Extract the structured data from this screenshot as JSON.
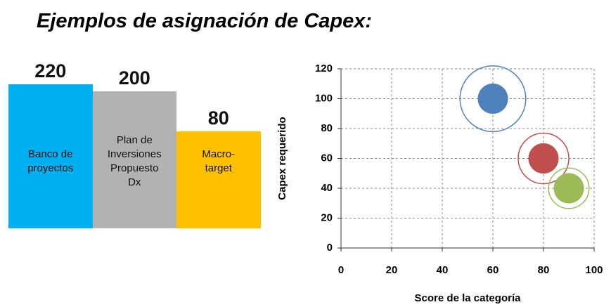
{
  "title": "Ejemplos de asignación de Capex:",
  "chart_data": [
    {
      "type": "bar",
      "categories": [
        "Banco de\nproyectos",
        "Plan de\nInversiones\nPropuesto\nDx",
        "Macro-\ntarget"
      ],
      "values": [
        220,
        200,
        80
      ],
      "colors": [
        "#00b0f0",
        "#b2b2b2",
        "#ffc000"
      ]
    },
    {
      "type": "scatter",
      "x": [
        60,
        80,
        90
      ],
      "values": [
        100,
        60,
        40
      ],
      "sizes": [
        6,
        6,
        6
      ],
      "ring_sizes": [
        13,
        10,
        8
      ],
      "colors": [
        "#4f81bd",
        "#c0504d",
        "#9bbb59"
      ],
      "xlim": [
        0,
        100
      ],
      "xticks": [
        0,
        20,
        40,
        60,
        80,
        100
      ],
      "ylim": [
        0,
        120
      ],
      "yticks": [
        0,
        20,
        40,
        60,
        80,
        100,
        120
      ],
      "xlabel": "Score de la categoría",
      "ylabel": "Capex requerido",
      "grid": true
    }
  ]
}
